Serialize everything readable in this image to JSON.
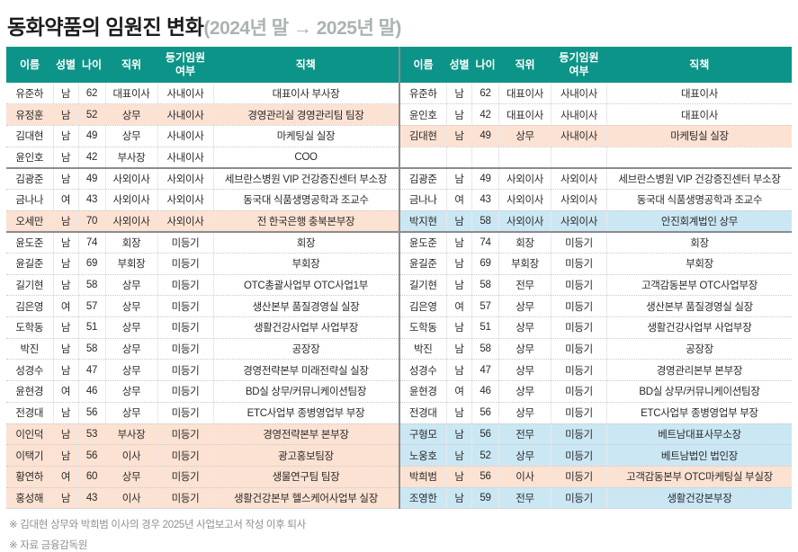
{
  "title": "동화약품의 임원진 변화",
  "subtitle": "(2024년 말 → 2025년 말)",
  "colors": {
    "header_bg": "#0d9488",
    "highlight_pink": "#fce2d3",
    "highlight_blue": "#cbe7f4"
  },
  "chart_data": {
    "type": "table",
    "title": "동화약품의 임원진 변화 (2024년 말 → 2025년 말)",
    "columns": [
      "이름",
      "성별",
      "나이",
      "직위",
      "등기임원 여부",
      "직책"
    ],
    "column_keys": [
      "name",
      "gender",
      "age",
      "position",
      "registered",
      "role"
    ],
    "tables": [
      {
        "period": "2024년 말",
        "rows": [
          {
            "cells": [
              "유준하",
              "남",
              "62",
              "대표이사",
              "사내이사",
              "대표이사 부사장"
            ],
            "highlight": "none",
            "separator_after": false
          },
          {
            "cells": [
              "유정훈",
              "남",
              "52",
              "상무",
              "사내이사",
              "경영관리실 경영관리팀 팀장"
            ],
            "highlight": "pink",
            "separator_after": false
          },
          {
            "cells": [
              "김대현",
              "남",
              "49",
              "상무",
              "사내이사",
              "마케팅실 실장"
            ],
            "highlight": "none",
            "separator_after": false
          },
          {
            "cells": [
              "윤인호",
              "남",
              "42",
              "부사장",
              "사내이사",
              "COO"
            ],
            "highlight": "none",
            "separator_after": true
          },
          {
            "cells": [
              "김광준",
              "남",
              "49",
              "사외이사",
              "사외이사",
              "세브란스병원 VIP 건강증진센터 부소장"
            ],
            "highlight": "none",
            "separator_after": false
          },
          {
            "cells": [
              "금나나",
              "여",
              "43",
              "사외이사",
              "사외이사",
              "동국대 식품생명공학과 조교수"
            ],
            "highlight": "none",
            "separator_after": false
          },
          {
            "cells": [
              "오세만",
              "남",
              "70",
              "사외이사",
              "사외이사",
              "전 한국은행 충북본부장"
            ],
            "highlight": "pink",
            "separator_after": true
          },
          {
            "cells": [
              "윤도준",
              "남",
              "74",
              "회장",
              "미등기",
              "회장"
            ],
            "highlight": "none",
            "separator_after": false
          },
          {
            "cells": [
              "윤길준",
              "남",
              "69",
              "부회장",
              "미등기",
              "부회장"
            ],
            "highlight": "none",
            "separator_after": false
          },
          {
            "cells": [
              "길기현",
              "남",
              "58",
              "상무",
              "미등기",
              "OTC총괄사업부 OTC사업1부"
            ],
            "highlight": "none",
            "separator_after": false
          },
          {
            "cells": [
              "김은영",
              "여",
              "57",
              "상무",
              "미등기",
              "생산본부 품질경영실 실장"
            ],
            "highlight": "none",
            "separator_after": false
          },
          {
            "cells": [
              "도학동",
              "남",
              "51",
              "상무",
              "미등기",
              "생활건강사업부 사업부장"
            ],
            "highlight": "none",
            "separator_after": false
          },
          {
            "cells": [
              "박진",
              "남",
              "58",
              "상무",
              "미등기",
              "공장장"
            ],
            "highlight": "none",
            "separator_after": false
          },
          {
            "cells": [
              "성경수",
              "남",
              "47",
              "상무",
              "미등기",
              "경영전략본부 미래전략실 실장"
            ],
            "highlight": "none",
            "separator_after": false
          },
          {
            "cells": [
              "윤현경",
              "여",
              "46",
              "상무",
              "미등기",
              "BD실 상무/커뮤니케이션팀장"
            ],
            "highlight": "none",
            "separator_after": false
          },
          {
            "cells": [
              "전경대",
              "남",
              "56",
              "상무",
              "미등기",
              "ETC사업부 종병영업부 부장"
            ],
            "highlight": "none",
            "separator_after": false
          },
          {
            "cells": [
              "이인덕",
              "남",
              "53",
              "부사장",
              "미등기",
              "경영전략본부 본부장"
            ],
            "highlight": "pink",
            "separator_after": false
          },
          {
            "cells": [
              "이택기",
              "남",
              "56",
              "이사",
              "미등기",
              "광고홍보팀장"
            ],
            "highlight": "pink",
            "separator_after": false
          },
          {
            "cells": [
              "황연하",
              "여",
              "60",
              "상무",
              "미등기",
              "생물연구팀 팀장"
            ],
            "highlight": "pink",
            "separator_after": false
          },
          {
            "cells": [
              "홍성해",
              "남",
              "43",
              "이사",
              "미등기",
              "생활건강본부 헬스케어사업부 실장"
            ],
            "highlight": "pink",
            "separator_after": false
          }
        ]
      },
      {
        "period": "2025년 말",
        "rows": [
          {
            "cells": [
              "유준하",
              "남",
              "62",
              "대표이사",
              "사내이사",
              "대표이사"
            ],
            "highlight": "none",
            "separator_after": false
          },
          {
            "cells": [
              "윤인호",
              "남",
              "42",
              "대표이사",
              "사내이사",
              "대표이사"
            ],
            "highlight": "none",
            "separator_after": false
          },
          {
            "cells": [
              "김대현",
              "남",
              "49",
              "상무",
              "사내이사",
              "마케팅실 실장"
            ],
            "highlight": "pink",
            "separator_after": false
          },
          {
            "cells": [
              "",
              "",
              "",
              "",
              "",
              ""
            ],
            "highlight": "none",
            "separator_after": true
          },
          {
            "cells": [
              "김광준",
              "남",
              "49",
              "사외이사",
              "사외이사",
              "세브란스병원 VIP 건강증진센터 부소장"
            ],
            "highlight": "none",
            "separator_after": false
          },
          {
            "cells": [
              "금나나",
              "여",
              "43",
              "사외이사",
              "사외이사",
              "동국대 식품생명공학과 조교수"
            ],
            "highlight": "none",
            "separator_after": false
          },
          {
            "cells": [
              "박지현",
              "남",
              "58",
              "사외이사",
              "사외이사",
              "안진회계법인 상무"
            ],
            "highlight": "blue",
            "separator_after": true
          },
          {
            "cells": [
              "윤도준",
              "남",
              "74",
              "회장",
              "미등기",
              "회장"
            ],
            "highlight": "none",
            "separator_after": false
          },
          {
            "cells": [
              "윤길준",
              "남",
              "69",
              "부회장",
              "미등기",
              "부회장"
            ],
            "highlight": "none",
            "separator_after": false
          },
          {
            "cells": [
              "길기현",
              "남",
              "58",
              "전무",
              "미등기",
              "고객감동본부 OTC사업부장"
            ],
            "highlight": "none",
            "separator_after": false
          },
          {
            "cells": [
              "김은영",
              "여",
              "57",
              "상무",
              "미등기",
              "생산본부 품질경영실 실장"
            ],
            "highlight": "none",
            "separator_after": false
          },
          {
            "cells": [
              "도학동",
              "남",
              "51",
              "상무",
              "미등기",
              "생활건강사업부 사업부장"
            ],
            "highlight": "none",
            "separator_after": false
          },
          {
            "cells": [
              "박진",
              "남",
              "58",
              "상무",
              "미등기",
              "공장장"
            ],
            "highlight": "none",
            "separator_after": false
          },
          {
            "cells": [
              "성경수",
              "남",
              "47",
              "상무",
              "미등기",
              "경영관리본부 본부장"
            ],
            "highlight": "none",
            "separator_after": false
          },
          {
            "cells": [
              "윤현경",
              "여",
              "46",
              "상무",
              "미등기",
              "BD실 상무/커뮤니케이션팀장"
            ],
            "highlight": "none",
            "separator_after": false
          },
          {
            "cells": [
              "전경대",
              "남",
              "56",
              "상무",
              "미등기",
              "ETC사업부 종병영업부 부장"
            ],
            "highlight": "none",
            "separator_after": false
          },
          {
            "cells": [
              "구형모",
              "남",
              "56",
              "전무",
              "미등기",
              "베트남대표사무소장"
            ],
            "highlight": "blue",
            "separator_after": false
          },
          {
            "cells": [
              "노웅호",
              "남",
              "52",
              "상무",
              "미등기",
              "베트남법인 법인장"
            ],
            "highlight": "blue",
            "separator_after": false
          },
          {
            "cells": [
              "박희범",
              "남",
              "56",
              "이사",
              "미등기",
              "고객감동본부 OTC마케팅실 부실장"
            ],
            "highlight": "pink",
            "separator_after": false
          },
          {
            "cells": [
              "조영한",
              "남",
              "59",
              "전무",
              "미등기",
              "생활건강본부장"
            ],
            "highlight": "blue",
            "separator_after": false
          }
        ]
      }
    ]
  },
  "footnotes": [
    "※ 김대현 상무와 박희범 이사의 경우 2025년 사업보고서 작성 이후 퇴사",
    "※ 자료 금융감독원"
  ]
}
